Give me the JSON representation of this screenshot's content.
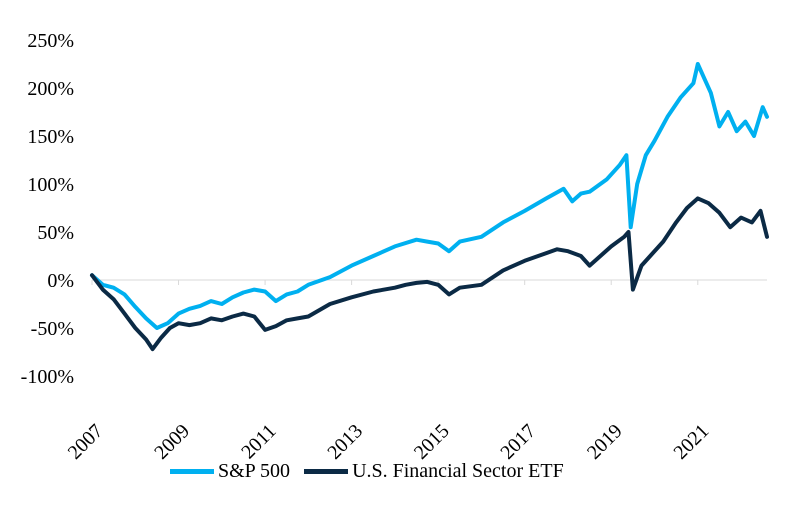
{
  "chart_data": {
    "type": "line",
    "title": "",
    "xlabel": "",
    "ylabel": "",
    "ylim": [
      -100,
      250
    ],
    "xlim": [
      2007,
      2022.6
    ],
    "y_ticks": [
      "-100%",
      "-50%",
      "0%",
      "50%",
      "100%",
      "150%",
      "200%",
      "250%"
    ],
    "x_ticks": [
      "2007",
      "2009",
      "2011",
      "2013",
      "2015",
      "2017",
      "2019",
      "2021"
    ],
    "grid": false,
    "legend_position": "bottom",
    "series": [
      {
        "name": "S&P 500",
        "color": "#00B0F0",
        "x": [
          2007.0,
          2007.25,
          2007.5,
          2007.75,
          2008.0,
          2008.25,
          2008.5,
          2008.75,
          2009.0,
          2009.25,
          2009.5,
          2009.75,
          2010.0,
          2010.25,
          2010.5,
          2010.75,
          2011.0,
          2011.25,
          2011.5,
          2011.75,
          2012.0,
          2012.5,
          2013.0,
          2013.5,
          2014.0,
          2014.5,
          2014.75,
          2015.0,
          2015.25,
          2015.5,
          2016.0,
          2016.5,
          2017.0,
          2017.5,
          2017.9,
          2018.1,
          2018.3,
          2018.5,
          2018.9,
          2019.2,
          2019.35,
          2019.45,
          2019.6,
          2019.8,
          2020.0,
          2020.3,
          2020.6,
          2020.9,
          2021.0,
          2021.15,
          2021.3,
          2021.5,
          2021.7,
          2021.9,
          2022.1,
          2022.3,
          2022.5,
          2022.6
        ],
        "values": [
          5,
          -5,
          -8,
          -15,
          -28,
          -40,
          -50,
          -45,
          -35,
          -30,
          -27,
          -22,
          -25,
          -18,
          -13,
          -10,
          -12,
          -22,
          -15,
          -12,
          -5,
          3,
          15,
          25,
          35,
          42,
          40,
          38,
          30,
          40,
          45,
          60,
          72,
          85,
          95,
          82,
          90,
          92,
          105,
          120,
          130,
          55,
          100,
          130,
          145,
          170,
          190,
          205,
          225,
          210,
          195,
          160,
          175,
          155,
          165,
          150,
          180,
          170
        ]
      },
      {
        "name": "U.S. Financial Sector ETF",
        "color": "#0B2A45",
        "x": [
          2007.0,
          2007.25,
          2007.5,
          2007.75,
          2008.0,
          2008.25,
          2008.4,
          2008.6,
          2008.8,
          2009.0,
          2009.25,
          2009.5,
          2009.75,
          2010.0,
          2010.25,
          2010.5,
          2010.75,
          2011.0,
          2011.25,
          2011.5,
          2011.75,
          2012.0,
          2012.5,
          2013.0,
          2013.5,
          2014.0,
          2014.25,
          2014.5,
          2014.75,
          2015.0,
          2015.25,
          2015.5,
          2016.0,
          2016.5,
          2017.0,
          2017.5,
          2017.75,
          2018.0,
          2018.3,
          2018.5,
          2018.75,
          2019.0,
          2019.3,
          2019.4,
          2019.5,
          2019.7,
          2019.9,
          2020.2,
          2020.5,
          2020.75,
          2021.0,
          2021.25,
          2021.5,
          2021.75,
          2022.0,
          2022.25,
          2022.45,
          2022.6
        ],
        "values": [
          5,
          -10,
          -20,
          -35,
          -50,
          -62,
          -72,
          -60,
          -50,
          -45,
          -47,
          -45,
          -40,
          -42,
          -38,
          -35,
          -38,
          -52,
          -48,
          -42,
          -40,
          -38,
          -25,
          -18,
          -12,
          -8,
          -5,
          -3,
          -2,
          -5,
          -15,
          -8,
          -5,
          10,
          20,
          28,
          32,
          30,
          25,
          15,
          25,
          35,
          45,
          50,
          -10,
          15,
          25,
          40,
          60,
          75,
          85,
          80,
          70,
          55,
          65,
          60,
          72,
          45
        ]
      }
    ]
  },
  "legend": {
    "items": [
      {
        "label": "S&P 500",
        "color": "#00B0F0"
      },
      {
        "label": "U.S. Financial Sector ETF",
        "color": "#0B2A45"
      }
    ]
  }
}
